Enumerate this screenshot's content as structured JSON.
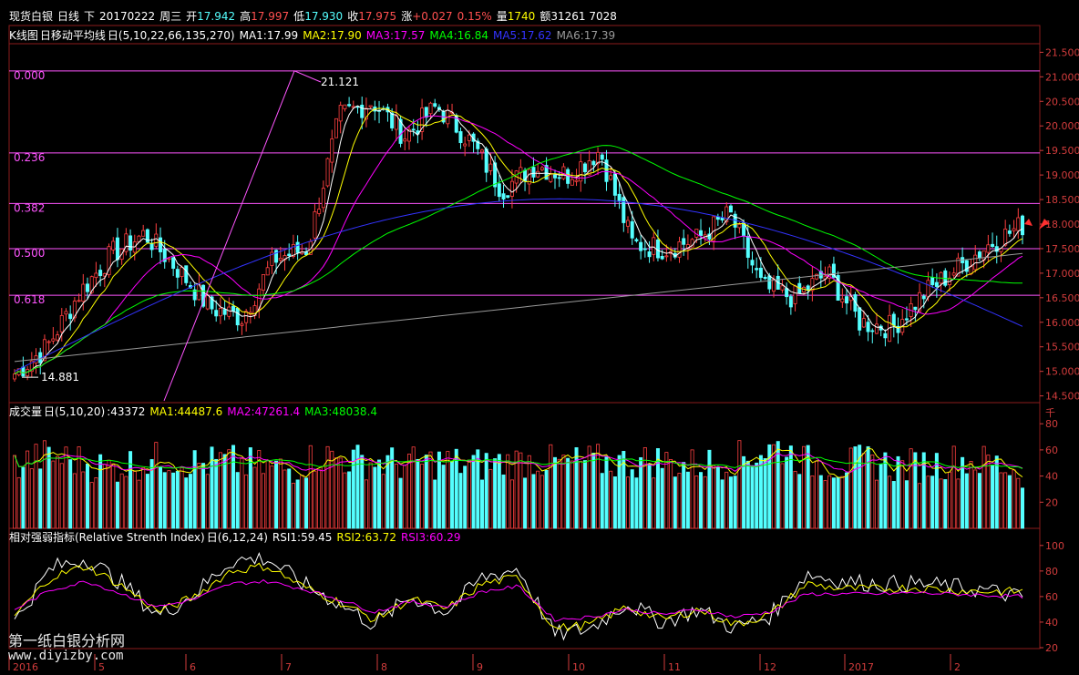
{
  "header": {
    "symbol": "现货白银",
    "period": "日线",
    "direction": "下",
    "date": "20170222",
    "weekday": "周三",
    "open_label": "开",
    "open": "17.942",
    "high_label": "高",
    "high": "17.997",
    "low_label": "低",
    "low": "17.930",
    "close_label": "收",
    "close": "17.975",
    "change_label": "涨",
    "change": "+0.027",
    "change_pct": "0.15%",
    "volume_label": "量",
    "volume": "1740",
    "amount_label": "额",
    "amount": "31261 7028"
  },
  "kline": {
    "name": "K线图",
    "indicator": "日移动平均线",
    "params": "日(5,10,22,66,135,270)",
    "ma": [
      {
        "label": "MA1:17.99",
        "color": "#ffffff"
      },
      {
        "label": "MA2:17.90",
        "color": "#ffff00"
      },
      {
        "label": "MA3:17.57",
        "color": "#ff00ff"
      },
      {
        "label": "MA4:16.84",
        "color": "#00ff00"
      },
      {
        "label": "MA5:17.62",
        "color": "#3333ff"
      },
      {
        "label": "MA6:17.39",
        "color": "#999999"
      }
    ]
  },
  "volume_panel": {
    "name": "成交量",
    "params": "日(5,10,20)",
    "value": ":43372",
    "ma": [
      {
        "label": "MA1:44487.6",
        "color": "#ffff00"
      },
      {
        "label": "MA2:47261.4",
        "color": "#ff00ff"
      },
      {
        "label": "MA3:48038.4",
        "color": "#00ff00"
      }
    ],
    "unit": "千"
  },
  "rsi_panel": {
    "name": "相对强弱指标(Relative Strenth Index)",
    "params": "日(6,12,24)",
    "rsi": [
      {
        "label": "RSI1:59.45",
        "color": "#ffffff"
      },
      {
        "label": "RSI2:63.72",
        "color": "#ffff00"
      },
      {
        "label": "RSI3:60.29",
        "color": "#ff00ff"
      }
    ]
  },
  "fib_levels": [
    {
      "label": "0.000",
      "price": 21.121
    },
    {
      "label": "0.236",
      "price": 19.45
    },
    {
      "label": "0.382",
      "price": 18.42
    },
    {
      "label": "0.500",
      "price": 17.5
    },
    {
      "label": "0.618",
      "price": 16.55
    }
  ],
  "annotations": {
    "high_label": "21.121",
    "low_label": "14.881"
  },
  "watermark": {
    "name": "第一纸白银分析网",
    "url": "www.diyizby.com"
  },
  "colors": {
    "up": "#ff4040",
    "down": "#54ffff",
    "grid": "#8c1c1c",
    "axis_text": "#d23c3c",
    "fib": "#ff55ff"
  },
  "chart_data": [
    {
      "type": "candlestick",
      "title": "现货白银 日线",
      "ylim": [
        14.4,
        21.6
      ],
      "y_ticks": [
        "21.500",
        "21.000",
        "20.500",
        "20.000",
        "19.500",
        "19.000",
        "18.500",
        "18.000",
        "17.500",
        "17.000",
        "16.500",
        "16.000",
        "15.500",
        "15.000",
        "14.500"
      ],
      "x_tick_labels": [
        "2016",
        "5",
        "6",
        "7",
        "8",
        "9",
        "10",
        "11",
        "12",
        "2017",
        "2"
      ],
      "anchors": [
        {
          "month": "2016-04",
          "close": 14.95
        },
        {
          "month": "2016-04",
          "close": 15.5
        },
        {
          "month": "2016-04",
          "close": 16.6
        },
        {
          "month": "2016-05",
          "close": 17.4
        },
        {
          "month": "2016-05",
          "close": 17.8
        },
        {
          "month": "2016-05",
          "close": 17.1
        },
        {
          "month": "2016-06",
          "close": 16.3
        },
        {
          "month": "2016-06",
          "close": 16.1
        },
        {
          "month": "2016-06",
          "close": 17.3
        },
        {
          "month": "2016-06",
          "close": 17.5
        },
        {
          "month": "2016-07",
          "close": 20.2
        },
        {
          "month": "2016-07",
          "close": 20.5
        },
        {
          "month": "2016-07",
          "close": 19.8
        },
        {
          "month": "2016-08",
          "close": 20.4
        },
        {
          "month": "2016-08",
          "close": 19.7
        },
        {
          "month": "2016-08",
          "close": 18.7
        },
        {
          "month": "2016-09",
          "close": 19.2
        },
        {
          "month": "2016-09",
          "close": 19.0
        },
        {
          "month": "2016-09",
          "close": 19.5
        },
        {
          "month": "2016-10",
          "close": 17.6
        },
        {
          "month": "2016-10",
          "close": 17.5
        },
        {
          "month": "2016-10",
          "close": 17.7
        },
        {
          "month": "2016-11",
          "close": 18.2
        },
        {
          "month": "2016-11",
          "close": 16.7
        },
        {
          "month": "2016-11",
          "close": 16.5
        },
        {
          "month": "2016-12",
          "close": 17.0
        },
        {
          "month": "2016-12",
          "close": 16.0
        },
        {
          "month": "2016-12",
          "close": 15.9
        },
        {
          "month": "2017-01",
          "close": 16.6
        },
        {
          "month": "2017-01",
          "close": 17.1
        },
        {
          "month": "2017-02",
          "close": 17.6
        },
        {
          "month": "2017-02",
          "close": 17.98
        }
      ]
    },
    {
      "type": "bar",
      "title": "成交量",
      "ylim": [
        0,
        85
      ],
      "y_ticks": [
        "80",
        "60",
        "40",
        "20"
      ],
      "levels": [
        48,
        55,
        52,
        46,
        50,
        54,
        49,
        51,
        47,
        45,
        56,
        52,
        50,
        49,
        51,
        48,
        50,
        52,
        49,
        51,
        50,
        52,
        48,
        50,
        55,
        62,
        50,
        48,
        51,
        47,
        49,
        52,
        50,
        43
      ]
    },
    {
      "type": "line",
      "title": "相对强弱指标",
      "ylim": [
        15,
        102
      ],
      "y_ticks": [
        "100",
        "80",
        "60",
        "40",
        "20"
      ],
      "series": [
        {
          "name": "RSI1",
          "values": [
            40,
            82,
            90,
            70,
            45,
            62,
            88,
            90,
            70,
            55,
            38,
            60,
            48,
            75,
            82,
            30,
            35,
            55,
            40,
            50,
            35,
            45,
            78,
            72,
            70,
            70,
            68,
            65,
            59
          ]
        },
        {
          "name": "RSI2",
          "values": [
            45,
            75,
            84,
            68,
            48,
            60,
            80,
            84,
            68,
            56,
            42,
            58,
            50,
            70,
            75,
            35,
            38,
            52,
            42,
            50,
            38,
            46,
            70,
            66,
            66,
            67,
            65,
            64,
            64
          ]
        },
        {
          "name": "RSI3",
          "values": [
            50,
            65,
            72,
            62,
            52,
            58,
            70,
            72,
            66,
            58,
            48,
            56,
            52,
            64,
            68,
            42,
            44,
            50,
            46,
            50,
            44,
            48,
            62,
            62,
            62,
            63,
            62,
            61,
            60
          ]
        }
      ]
    }
  ]
}
